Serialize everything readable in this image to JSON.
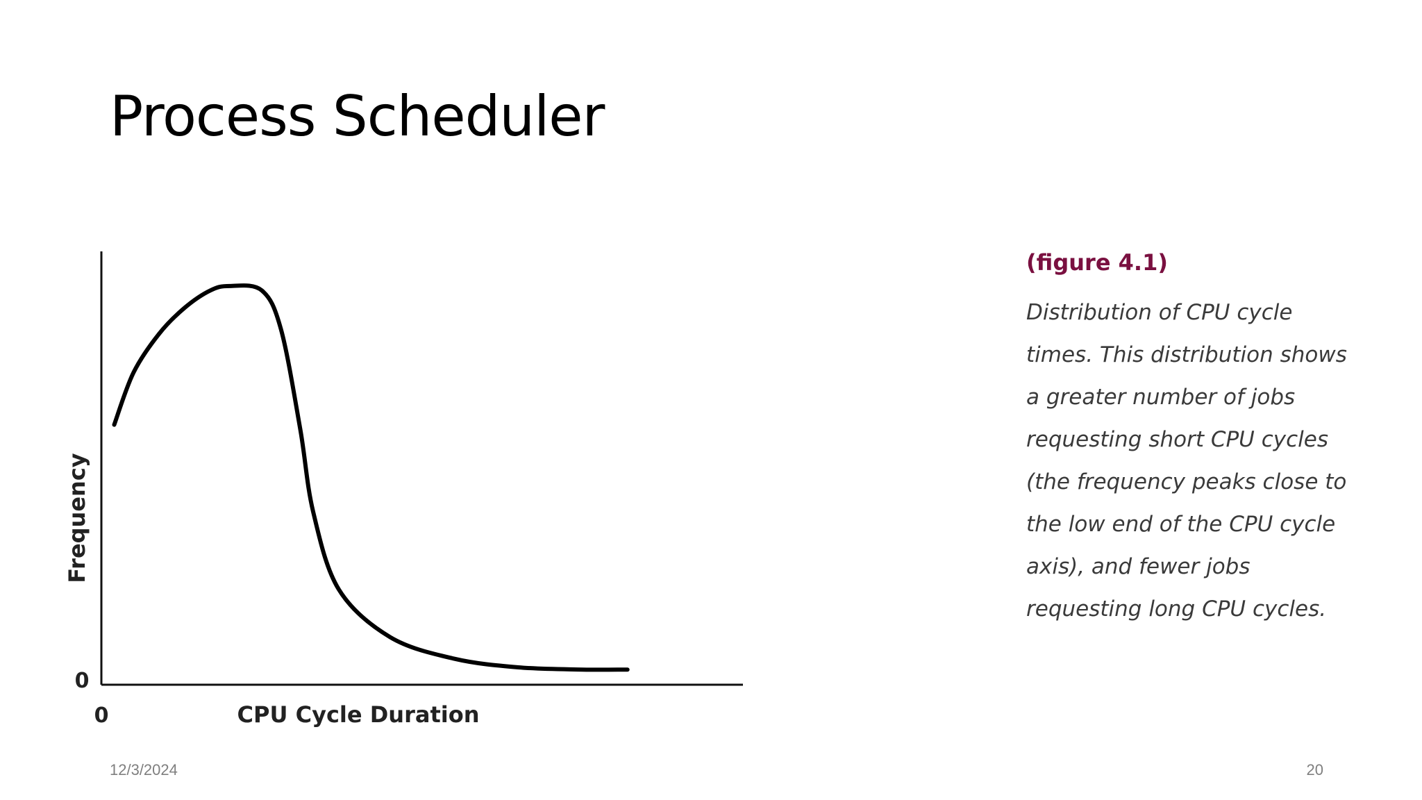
{
  "slide": {
    "title": "Process Scheduler",
    "date": "12/3/2024",
    "page_number": "20"
  },
  "caption": {
    "heading": "(figure 4.1)",
    "text": "Distribution of CPU cycle times. This distribution shows a greater number of jobs requesting short CPU cycles (the frequency peaks close to the low end of the CPU cycle axis), and fewer jobs requesting long CPU cycles."
  },
  "chart_data": {
    "type": "line",
    "title": "",
    "xlabel": "CPU Cycle Duration",
    "ylabel": "Frequency",
    "x_tick_labels": [
      "0"
    ],
    "y_tick_labels": [
      "0"
    ],
    "xlim": [
      0,
      10
    ],
    "ylim": [
      0,
      10
    ],
    "grid": false,
    "legend": "none",
    "line_color": "#000000",
    "series": [
      {
        "x": [
          0.2,
          0.5,
          0.9,
          1.3,
          1.7,
          2.0,
          2.5,
          2.8,
          3.1,
          3.3,
          3.7,
          4.5,
          5.5,
          6.5,
          7.5,
          8.2
        ],
        "values": [
          6.0,
          7.2,
          8.1,
          8.7,
          9.1,
          9.2,
          9.1,
          8.2,
          5.9,
          4.0,
          2.2,
          1.1,
          0.6,
          0.4,
          0.35,
          0.35
        ]
      }
    ]
  }
}
